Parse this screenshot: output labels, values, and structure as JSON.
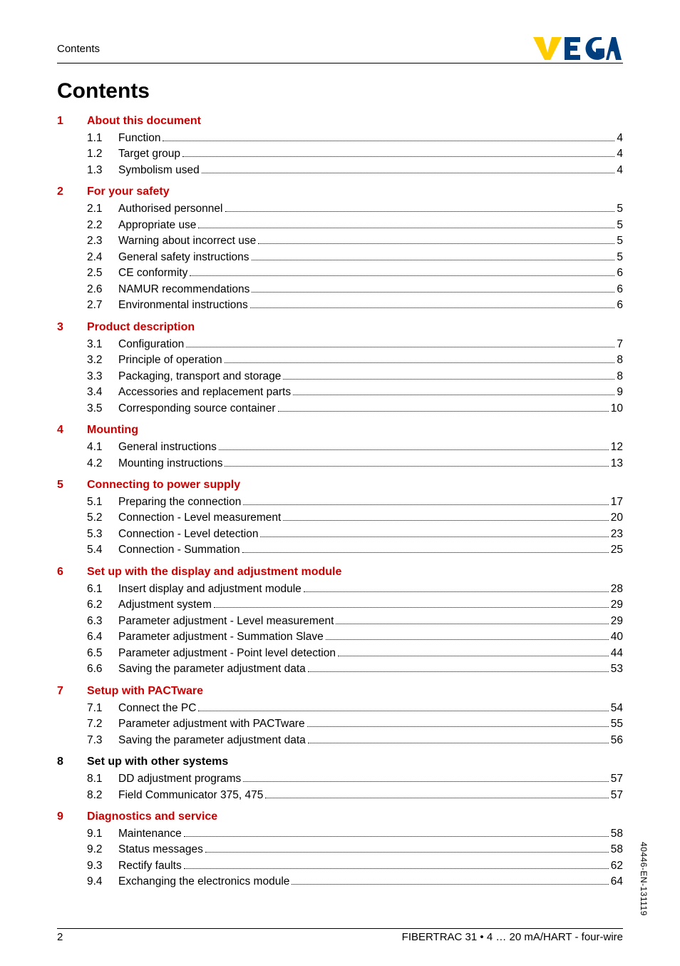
{
  "colors": {
    "red": "#cc0000",
    "logo_yellow": "#ffcc00",
    "logo_blue": "#003e7e",
    "text": "#000000",
    "bg": "#ffffff"
  },
  "header": {
    "section_label": "Contents"
  },
  "title": "Contents",
  "footer": {
    "page_number": "2",
    "doc_line": "FIBERTRAC 31 • 4 … 20 mA/HART - four-wire"
  },
  "side_label": "40446-EN-131119",
  "chapters": [
    {
      "num": "1",
      "title": "About this document",
      "color": "red",
      "entries": [
        {
          "num": "1.1",
          "label": "Function",
          "page": "4"
        },
        {
          "num": "1.2",
          "label": "Target group",
          "page": "4"
        },
        {
          "num": "1.3",
          "label": "Symbolism used",
          "page": "4"
        }
      ]
    },
    {
      "num": "2",
      "title": "For your safety",
      "color": "red",
      "entries": [
        {
          "num": "2.1",
          "label": "Authorised personnel",
          "page": "5"
        },
        {
          "num": "2.2",
          "label": "Appropriate use",
          "page": "5"
        },
        {
          "num": "2.3",
          "label": "Warning about incorrect use",
          "page": "5"
        },
        {
          "num": "2.4",
          "label": "General safety instructions",
          "page": "5"
        },
        {
          "num": "2.5",
          "label": "CE conformity",
          "page": "6"
        },
        {
          "num": "2.6",
          "label": "NAMUR recommendations",
          "page": "6"
        },
        {
          "num": "2.7",
          "label": "Environmental instructions",
          "page": "6"
        }
      ]
    },
    {
      "num": "3",
      "title": "Product description",
      "color": "red",
      "entries": [
        {
          "num": "3.1",
          "label": "Configuration",
          "page": "7"
        },
        {
          "num": "3.2",
          "label": "Principle of operation",
          "page": "8"
        },
        {
          "num": "3.3",
          "label": "Packaging, transport and storage",
          "page": "8"
        },
        {
          "num": "3.4",
          "label": "Accessories and replacement parts",
          "page": "9"
        },
        {
          "num": "3.5",
          "label": "Corresponding source container",
          "page": "10"
        }
      ]
    },
    {
      "num": "4",
      "title": "Mounting",
      "color": "red",
      "entries": [
        {
          "num": "4.1",
          "label": "General instructions",
          "page": "12"
        },
        {
          "num": "4.2",
          "label": "Mounting instructions",
          "page": "13"
        }
      ]
    },
    {
      "num": "5",
      "title": "Connecting to power supply",
      "color": "red",
      "entries": [
        {
          "num": "5.1",
          "label": "Preparing the connection",
          "page": "17"
        },
        {
          "num": "5.2",
          "label": "Connection - Level measurement",
          "page": "20"
        },
        {
          "num": "5.3",
          "label": "Connection - Level detection",
          "page": "23"
        },
        {
          "num": "5.4",
          "label": "Connection - Summation",
          "page": "25"
        }
      ]
    },
    {
      "num": "6",
      "title": "Set up with the display and adjustment module",
      "color": "red",
      "entries": [
        {
          "num": "6.1",
          "label": "Insert display and adjustment module",
          "page": "28"
        },
        {
          "num": "6.2",
          "label": "Adjustment system",
          "page": "29"
        },
        {
          "num": "6.3",
          "label": "Parameter adjustment - Level measurement",
          "page": "29"
        },
        {
          "num": "6.4",
          "label": "Parameter adjustment - Summation Slave",
          "page": "40"
        },
        {
          "num": "6.5",
          "label": "Parameter adjustment - Point level detection",
          "page": "44"
        },
        {
          "num": "6.6",
          "label": "Saving the parameter adjustment data",
          "page": "53"
        }
      ]
    },
    {
      "num": "7",
      "title": "Setup with PACTware",
      "color": "red",
      "entries": [
        {
          "num": "7.1",
          "label": "Connect the PC",
          "page": "54"
        },
        {
          "num": "7.2",
          "label": "Parameter adjustment with PACTware",
          "page": "55"
        },
        {
          "num": "7.3",
          "label": "Saving the parameter adjustment data",
          "page": "56"
        }
      ]
    },
    {
      "num": "8",
      "title": "Set up with other systems",
      "color": "black",
      "entries": [
        {
          "num": "8.1",
          "label": "DD adjustment programs",
          "page": "57"
        },
        {
          "num": "8.2",
          "label": "Field Communicator 375, 475",
          "page": "57"
        }
      ]
    },
    {
      "num": "9",
      "title": "Diagnostics and service",
      "color": "red",
      "entries": [
        {
          "num": "9.1",
          "label": "Maintenance",
          "page": "58"
        },
        {
          "num": "9.2",
          "label": "Status messages",
          "page": "58"
        },
        {
          "num": "9.3",
          "label": "Rectify faults",
          "page": "62"
        },
        {
          "num": "9.4",
          "label": "Exchanging the electronics module",
          "page": "64"
        }
      ]
    }
  ]
}
